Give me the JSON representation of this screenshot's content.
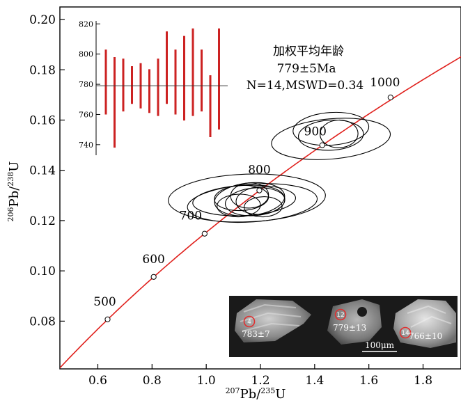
{
  "chart_data": {
    "type": "scatter",
    "xlabel": {
      "sup": "207",
      "main": "Pb/",
      "sup2": "235",
      "tail": "U"
    },
    "ylabel": {
      "sup": "206",
      "main": "Pb/",
      "sup2": "238",
      "tail": "U"
    },
    "xlim": [
      0.46,
      1.94
    ],
    "ylim": [
      0.061,
      0.205
    ],
    "x_ticks": [
      {
        "v": 0.6,
        "label": "0.6"
      },
      {
        "v": 0.8,
        "label": "0.8"
      },
      {
        "v": 1.0,
        "label": "1.0"
      },
      {
        "v": 1.2,
        "label": "1.2"
      },
      {
        "v": 1.4,
        "label": "1.4"
      },
      {
        "v": 1.6,
        "label": "1.6"
      },
      {
        "v": 1.8,
        "label": "1.8"
      }
    ],
    "y_ticks": [
      {
        "v": 0.08,
        "label": "0.08"
      },
      {
        "v": 0.1,
        "label": "0.10"
      },
      {
        "v": 0.12,
        "label": "0.12"
      },
      {
        "v": 0.14,
        "label": "0.14"
      },
      {
        "v": 0.16,
        "label": "0.16"
      },
      {
        "v": 0.18,
        "label": "0.18"
      },
      {
        "v": 0.2,
        "label": "0.20"
      }
    ],
    "concordia_line_color": "#e0201c",
    "concordia_points": [
      {
        "x": 0.636,
        "y": 0.0807,
        "label": "500"
      },
      {
        "x": 0.806,
        "y": 0.0976,
        "label": "600"
      },
      {
        "x": 0.994,
        "y": 0.1148,
        "label": "700"
      },
      {
        "x": 1.196,
        "y": 0.132,
        "label": "800"
      },
      {
        "x": 1.428,
        "y": 0.15,
        "label": "900"
      },
      {
        "x": 1.68,
        "y": 0.169,
        "label": "1000"
      }
    ],
    "ellipses": [
      {
        "cx": 1.15,
        "cy": 0.129,
        "rx": 0.29,
        "ry": 0.0095,
        "rot": 2
      },
      {
        "cx": 1.17,
        "cy": 0.127,
        "rx": 0.24,
        "ry": 0.0075,
        "rot": 4
      },
      {
        "cx": 1.14,
        "cy": 0.128,
        "rx": 0.19,
        "ry": 0.006,
        "rot": 3
      },
      {
        "cx": 1.18,
        "cy": 0.1275,
        "rx": 0.11,
        "ry": 0.0055,
        "rot": 5
      },
      {
        "cx": 1.13,
        "cy": 0.129,
        "rx": 0.1,
        "ry": 0.005,
        "rot": 3
      },
      {
        "cx": 1.2,
        "cy": 0.128,
        "rx": 0.09,
        "ry": 0.0055,
        "rot": 4
      },
      {
        "cx": 1.12,
        "cy": 0.126,
        "rx": 0.08,
        "ry": 0.0045,
        "rot": 2
      },
      {
        "cx": 1.16,
        "cy": 0.13,
        "rx": 0.07,
        "ry": 0.005,
        "rot": 3
      },
      {
        "cx": 1.21,
        "cy": 0.1255,
        "rx": 0.07,
        "ry": 0.004,
        "rot": 2
      },
      {
        "cx": 1.16,
        "cy": 0.1285,
        "rx": 0.13,
        "ry": 0.0065,
        "rot": 6
      },
      {
        "cx": 1.46,
        "cy": 0.1525,
        "rx": 0.22,
        "ry": 0.008,
        "rot": 5
      },
      {
        "cx": 1.46,
        "cy": 0.154,
        "rx": 0.12,
        "ry": 0.006,
        "rot": 3
      },
      {
        "cx": 1.49,
        "cy": 0.1545,
        "rx": 0.07,
        "ry": 0.0055,
        "rot": 2
      },
      {
        "cx": 1.46,
        "cy": 0.1565,
        "rx": 0.14,
        "ry": 0.0065,
        "rot": 4
      }
    ],
    "inset": {
      "ylim": [
        733,
        822
      ],
      "ticks": [
        {
          "v": 740,
          "label": "740"
        },
        {
          "v": 760,
          "label": "760"
        },
        {
          "v": 780,
          "label": "780"
        },
        {
          "v": 800,
          "label": "800"
        },
        {
          "v": 820,
          "label": "820"
        }
      ],
      "mean": 779,
      "bar_color": "#cc2222",
      "bars": [
        {
          "lo": 760,
          "hi": 803
        },
        {
          "lo": 738,
          "hi": 798
        },
        {
          "lo": 762,
          "hi": 797
        },
        {
          "lo": 767,
          "hi": 792
        },
        {
          "lo": 764,
          "hi": 794
        },
        {
          "lo": 761,
          "hi": 790
        },
        {
          "lo": 759,
          "hi": 797
        },
        {
          "lo": 767,
          "hi": 815
        },
        {
          "lo": 760,
          "hi": 803
        },
        {
          "lo": 756,
          "hi": 812
        },
        {
          "lo": 759,
          "hi": 817
        },
        {
          "lo": 762,
          "hi": 803
        },
        {
          "lo": 745,
          "hi": 786
        },
        {
          "lo": 750,
          "hi": 817
        }
      ]
    },
    "annotation": {
      "line1": "加权平均年龄",
      "line2": "779±5Ma",
      "line3": "N=14,MSWD=0.34"
    },
    "photos": {
      "scale_label": "100μm",
      "circle_color": "#e03030",
      "grains": [
        {
          "spot": "4",
          "age": "783±7"
        },
        {
          "spot": "12",
          "age": "779±13"
        },
        {
          "spot": "14",
          "age": "766±10"
        }
      ]
    }
  }
}
